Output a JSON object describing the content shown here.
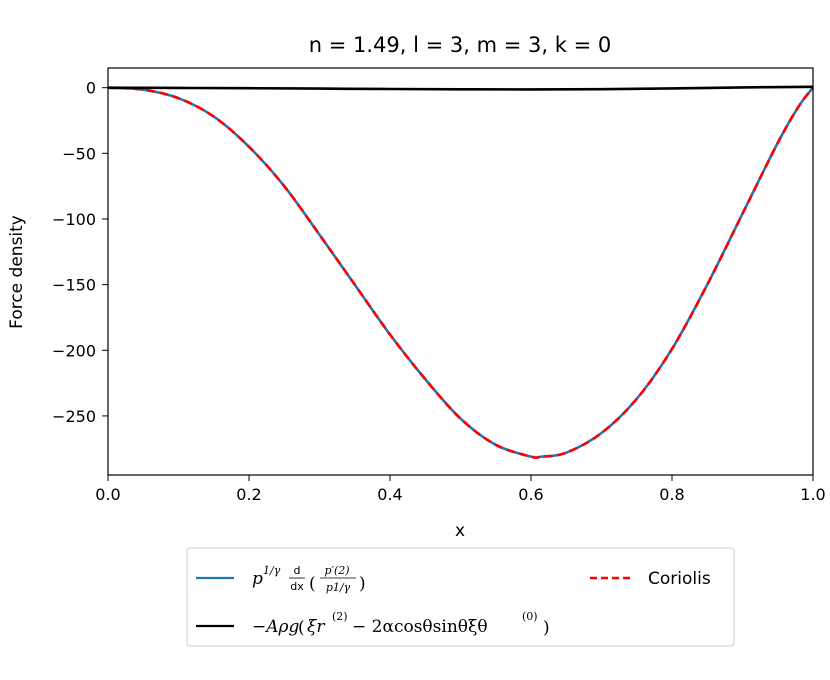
{
  "chart_data": {
    "type": "line",
    "title": "n = 1.49, l = 3, m = 3, k = 0",
    "xlabel": "x",
    "ylabel": "Force density",
    "xlim": [
      0.0,
      1.0
    ],
    "ylim": [
      -295,
      15
    ],
    "xticks": [
      "0.0",
      "0.2",
      "0.4",
      "0.6",
      "0.8",
      "1.0"
    ],
    "yticks": [
      "0",
      "−50",
      "−100",
      "−150",
      "−200",
      "−250"
    ],
    "grid": false,
    "legend_position": "bottom-center-outside",
    "colors": {
      "series1": "#1f77b4",
      "series2": "#ff0000",
      "series3": "#000000"
    },
    "series": [
      {
        "name": "p^{1/γ} d/dx ( p′^{(2)} / p^{1/γ} )",
        "style": "solid",
        "x": [
          0.0,
          0.05,
          0.1,
          0.15,
          0.2,
          0.25,
          0.3,
          0.35,
          0.4,
          0.45,
          0.5,
          0.55,
          0.6,
          0.615,
          0.65,
          0.7,
          0.75,
          0.8,
          0.85,
          0.9,
          0.95,
          0.98,
          1.0
        ],
        "y": [
          0,
          -1.5,
          -8,
          -22,
          -45,
          -75,
          -112,
          -150,
          -188,
          -222,
          -252,
          -272,
          -281,
          -281,
          -278,
          -263,
          -237,
          -199,
          -150,
          -96,
          -42,
          -14,
          0
        ]
      },
      {
        "name": "Coriolis",
        "style": "dashed",
        "x": [
          0.0,
          0.05,
          0.1,
          0.15,
          0.2,
          0.25,
          0.3,
          0.35,
          0.4,
          0.45,
          0.5,
          0.55,
          0.6,
          0.615,
          0.65,
          0.7,
          0.75,
          0.8,
          0.85,
          0.9,
          0.95,
          0.98,
          1.0
        ],
        "y": [
          0,
          -1.5,
          -8,
          -22,
          -45,
          -75,
          -112,
          -150,
          -188,
          -222,
          -252,
          -272,
          -281,
          -281,
          -278,
          -263,
          -237,
          -199,
          -150,
          -96,
          -42,
          -14,
          0
        ]
      },
      {
        "name": "−Aρg ( ξr^{(2)} − 2α cosθ sinθ ξθ^{(0)} )",
        "style": "solid",
        "x": [
          0.0,
          0.1,
          0.2,
          0.3,
          0.4,
          0.5,
          0.6,
          0.7,
          0.8,
          0.9,
          1.0
        ],
        "y": [
          0,
          -0.2,
          -0.4,
          -0.7,
          -1.0,
          -1.2,
          -1.3,
          -1.1,
          -0.6,
          0.2,
          0.7
        ]
      }
    ]
  },
  "legend": {
    "entry1": {
      "lhs": "p",
      "exp": "1/γ",
      "frac_top": "d",
      "frac_bottom": "dx",
      "inner_top": "p′(2)",
      "inner_bottom": "p1/γ"
    },
    "entry2": {
      "label": "−Aρg",
      "xi_r": "ξr",
      "xi_r_sup": "(2)",
      "middle": " − 2αcosθsinθξθ",
      "xi_t_sup": "(0)"
    },
    "entry3": {
      "label": "Coriolis"
    }
  }
}
